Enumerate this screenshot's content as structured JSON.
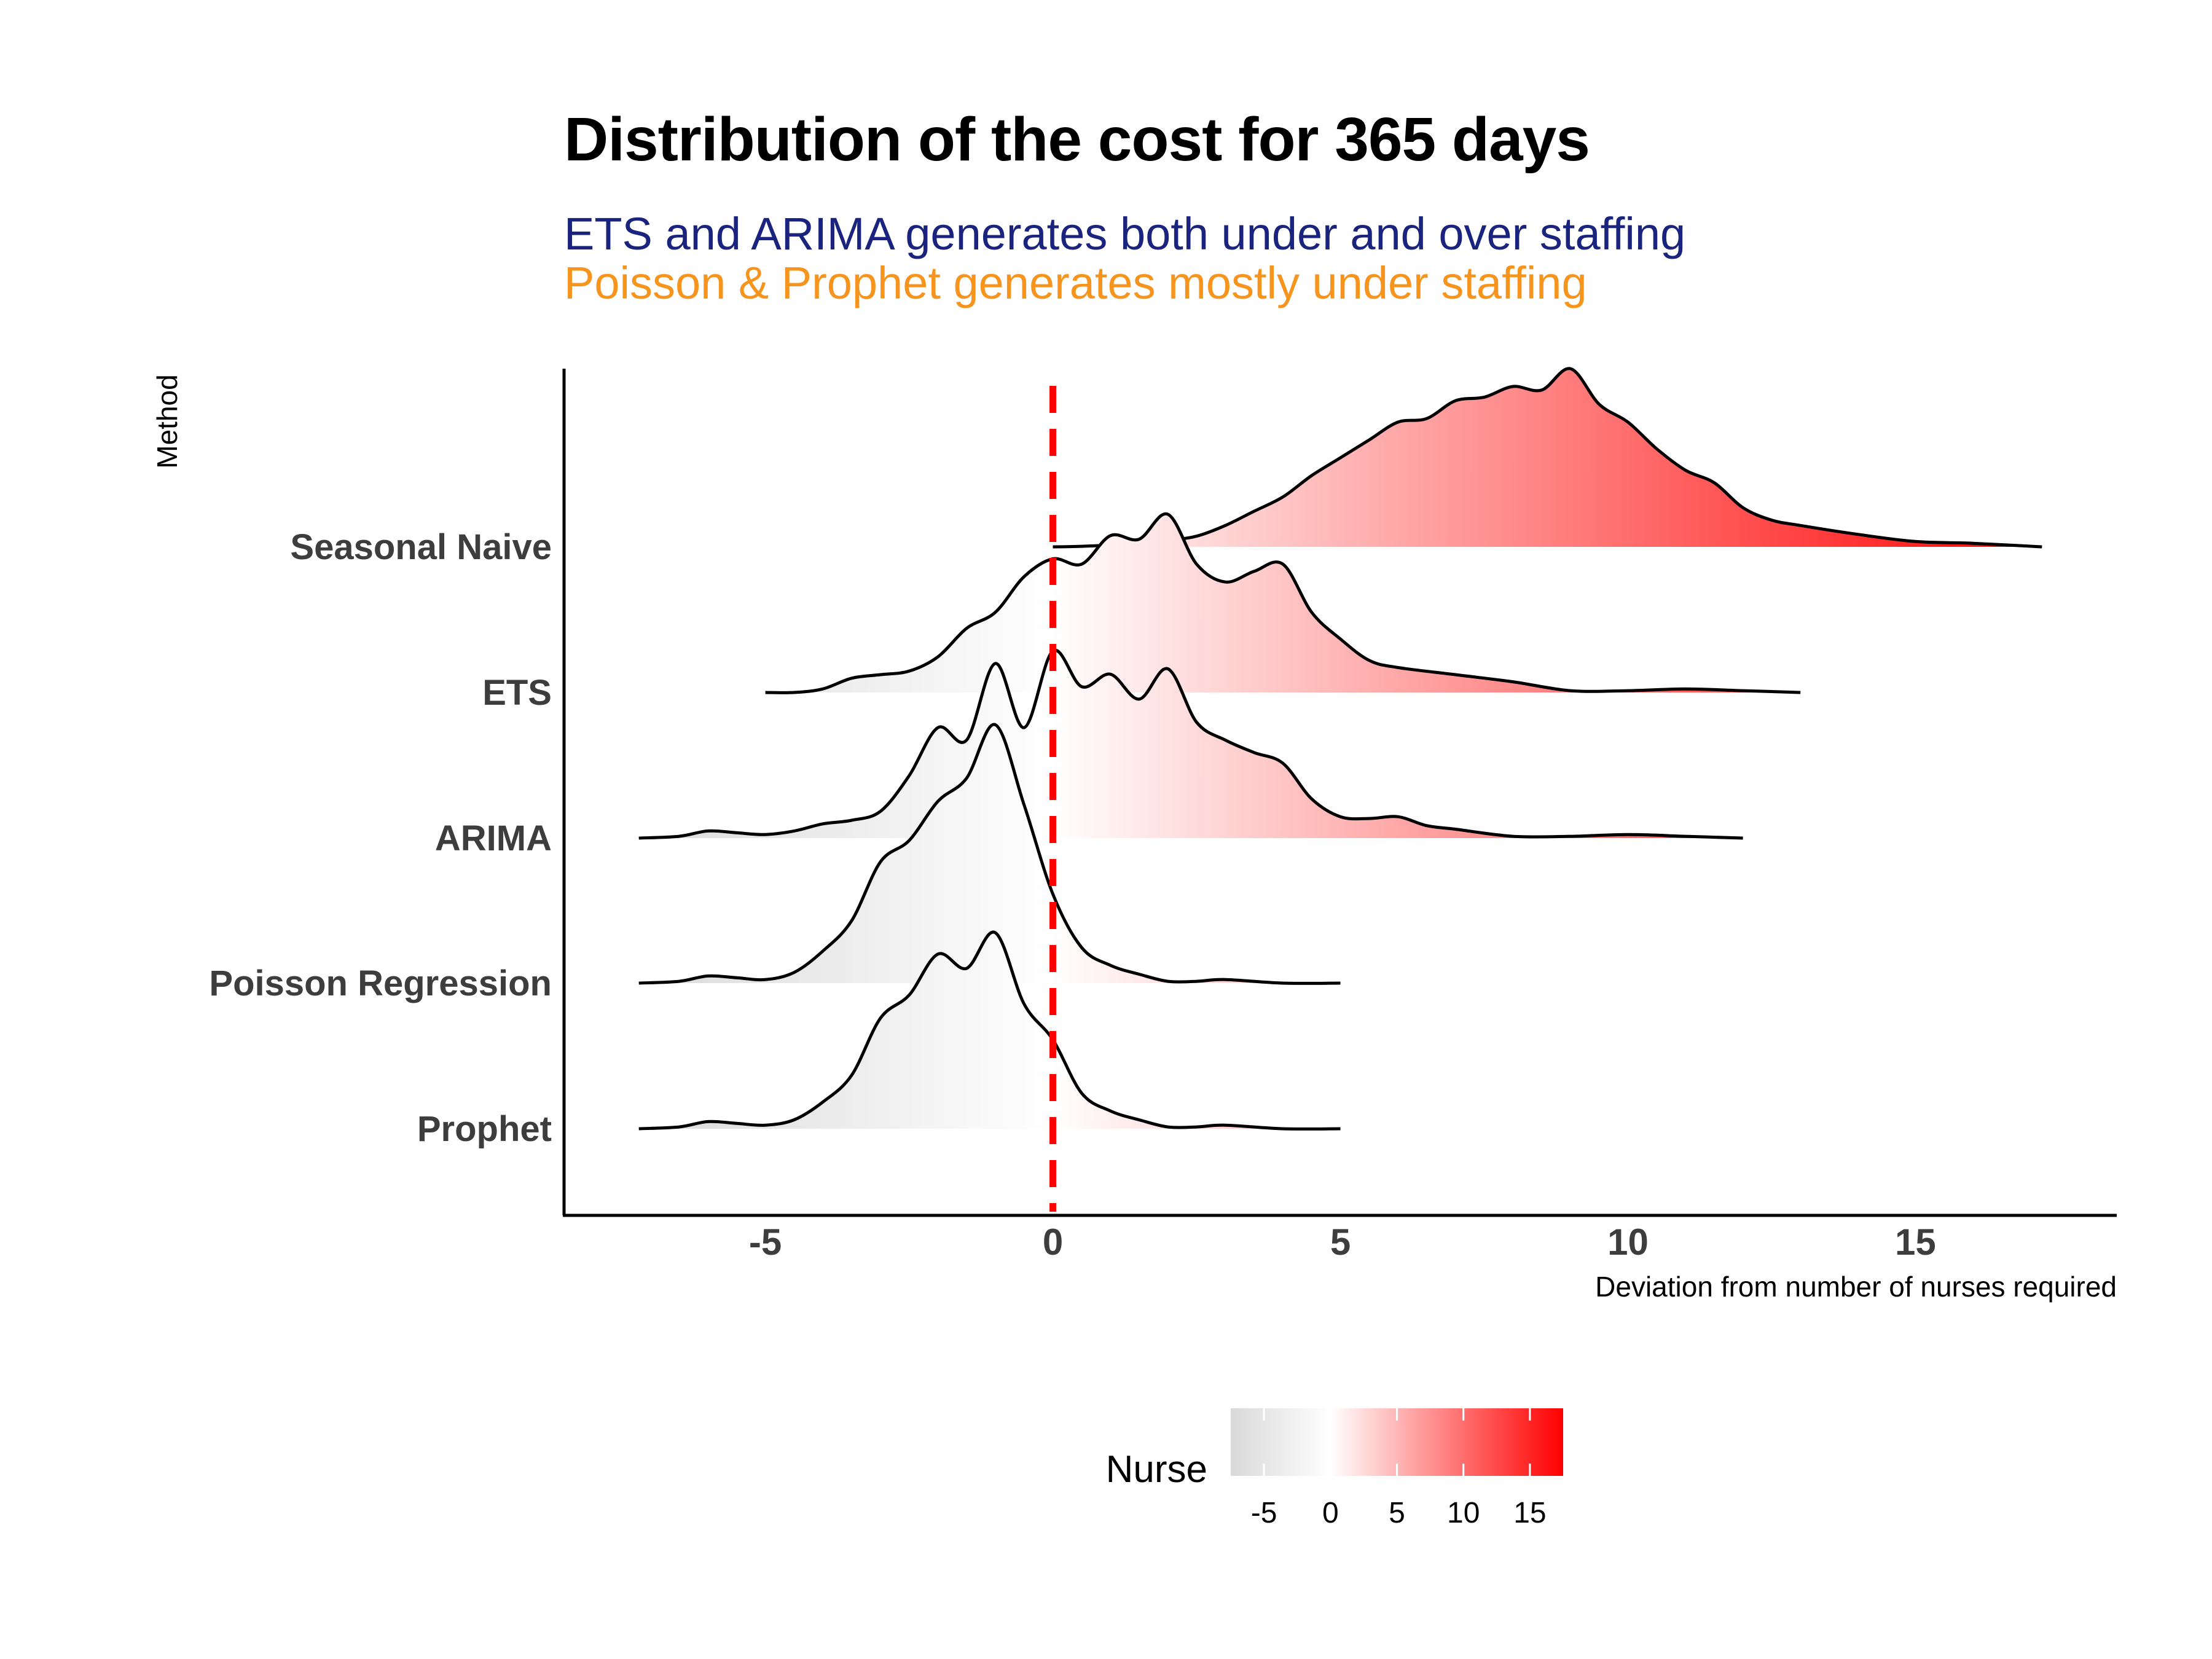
{
  "title": "Distribution of the cost for 365 days",
  "subtitle_line1": "ETS and ARIMA generates both under and over staffing",
  "subtitle_line2": "Poisson & Prophet generates mostly under staffing",
  "colors": {
    "subtitle_line1": "#1a237e",
    "subtitle_line2": "#f7941d",
    "fill_low": "#d9d9d9",
    "fill_mid": "#ffffff",
    "fill_high": "#ff0000",
    "reference_line": "#ff0000",
    "curve": "#000000"
  },
  "chart_data": {
    "type": "ridgeline density",
    "xlabel": "Deviation from number of nurses required",
    "ylabel": "Method",
    "xlim": [
      -8.5,
      18.5
    ],
    "xticks": [
      -5,
      0,
      5,
      10,
      15
    ],
    "reference_line": {
      "x": 0,
      "style": "dashed",
      "color": "red"
    },
    "series": [
      {
        "name": "Seasonal Naive",
        "x": [
          0,
          0.5,
          1,
          1.5,
          2,
          2.5,
          3,
          3.5,
          4,
          4.5,
          5,
          5.5,
          6,
          6.5,
          7,
          7.5,
          8,
          8.5,
          9,
          9.5,
          10,
          10.5,
          11,
          11.5,
          12,
          12.5,
          13,
          14,
          15,
          16,
          17.2
        ],
        "density": [
          0,
          0.003,
          0.01,
          0.02,
          0.035,
          0.06,
          0.12,
          0.2,
          0.28,
          0.4,
          0.5,
          0.6,
          0.7,
          0.72,
          0.82,
          0.84,
          0.9,
          0.88,
          1.0,
          0.8,
          0.7,
          0.55,
          0.43,
          0.36,
          0.22,
          0.15,
          0.12,
          0.07,
          0.03,
          0.02,
          0.0
        ]
      },
      {
        "name": "ETS",
        "x": [
          -5,
          -4.5,
          -4,
          -3.5,
          -3,
          -2.5,
          -2,
          -1.5,
          -1,
          -0.5,
          0,
          0.5,
          1,
          1.5,
          2,
          2.5,
          3,
          3.5,
          4,
          4.5,
          5,
          5.5,
          6,
          7,
          8,
          9,
          10,
          11,
          12,
          13
        ],
        "density": [
          0,
          0.0,
          0.02,
          0.08,
          0.1,
          0.12,
          0.2,
          0.36,
          0.45,
          0.65,
          0.75,
          0.72,
          0.88,
          0.86,
          1.0,
          0.72,
          0.62,
          0.68,
          0.72,
          0.45,
          0.3,
          0.18,
          0.14,
          0.1,
          0.06,
          0.01,
          0.01,
          0.02,
          0.01,
          0.0
        ]
      },
      {
        "name": "ARIMA",
        "x": [
          -7.2,
          -6.5,
          -6,
          -5.5,
          -5,
          -4.5,
          -4,
          -3.5,
          -3,
          -2.5,
          -2,
          -1.5,
          -1,
          -0.5,
          0,
          0.5,
          1,
          1.5,
          2,
          2.5,
          3,
          3.5,
          4,
          4.5,
          5,
          5.5,
          6,
          6.5,
          7,
          8,
          9,
          10,
          11,
          12
        ],
        "density": [
          0,
          0.01,
          0.04,
          0.03,
          0.02,
          0.04,
          0.08,
          0.1,
          0.15,
          0.35,
          0.62,
          0.55,
          0.98,
          0.62,
          1.05,
          0.85,
          0.92,
          0.78,
          0.95,
          0.65,
          0.55,
          0.48,
          0.42,
          0.22,
          0.12,
          0.11,
          0.12,
          0.07,
          0.05,
          0.01,
          0.01,
          0.02,
          0.01,
          0.0
        ]
      },
      {
        "name": "Poisson Regression",
        "x": [
          -7.2,
          -6.5,
          -6,
          -5.5,
          -5,
          -4.5,
          -4,
          -3.5,
          -3,
          -2.5,
          -2,
          -1.5,
          -1,
          -0.5,
          0,
          0.5,
          1,
          1.5,
          2,
          2.5,
          3,
          4,
          5
        ],
        "density": [
          0,
          0.01,
          0.04,
          0.03,
          0.02,
          0.06,
          0.18,
          0.35,
          0.68,
          0.8,
          1.02,
          1.15,
          1.45,
          1.0,
          0.5,
          0.2,
          0.1,
          0.05,
          0.01,
          0.01,
          0.02,
          0.0,
          0.0
        ]
      },
      {
        "name": "Prophet",
        "x": [
          -7.2,
          -6.5,
          -6,
          -5.5,
          -5,
          -4.5,
          -4,
          -3.5,
          -3,
          -2.5,
          -2,
          -1.5,
          -1,
          -0.5,
          0,
          0.5,
          1,
          1.5,
          2,
          2.5,
          3,
          4,
          5
        ],
        "density": [
          0,
          0.01,
          0.04,
          0.03,
          0.02,
          0.05,
          0.15,
          0.3,
          0.62,
          0.75,
          0.98,
          0.9,
          1.1,
          0.7,
          0.5,
          0.2,
          0.1,
          0.05,
          0.01,
          0.01,
          0.02,
          0.0,
          0.0
        ]
      }
    ],
    "legend": {
      "title": "Nurse",
      "position": "bottom",
      "ticks": [
        -5,
        0,
        5,
        10,
        15
      ],
      "range": [
        -7.5,
        17.5
      ]
    }
  }
}
